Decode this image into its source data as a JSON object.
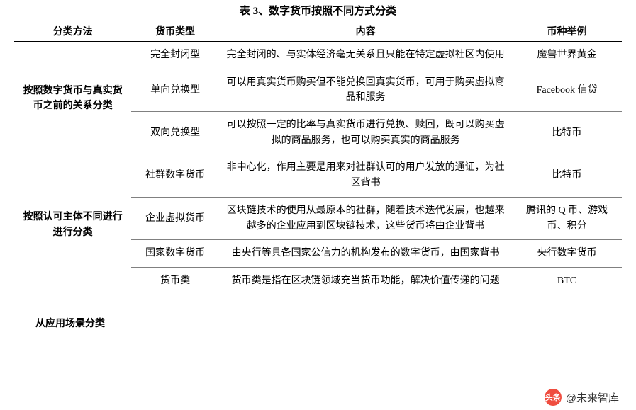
{
  "title": "表 3、数字货币按照不同方式分类",
  "columns": [
    "分类方法",
    "货币类型",
    "内容",
    "币种举例"
  ],
  "sections": [
    {
      "method": "按照数字货币与真实货币之前的关系分类",
      "rows": [
        {
          "type": "完全封闭型",
          "desc": "完全封闭的、与实体经济毫无关系且只能在特定虚拟社区内使用",
          "example": "魔兽世界黄金"
        },
        {
          "type": "单向兑换型",
          "desc": "可以用真实货币购买但不能兑换回真实货币，可用于购买虚拟商品和服务",
          "example": "Facebook 信贷"
        },
        {
          "type": "双向兑换型",
          "desc": "可以按照一定的比率与真实货币进行兑换、赎回，既可以购买虚拟的商品服务，也可以购买真实的商品服务",
          "example": "比特币"
        }
      ]
    },
    {
      "method": "按照认可主体不同进行进行分类",
      "rows": [
        {
          "type": "社群数字货币",
          "desc": "非中心化，作用主要是用来对社群认可的用户发放的通证，为社区背书",
          "example": "比特币"
        },
        {
          "type": "企业虚拟货币",
          "desc": "区块链技术的使用从最原本的社群，随着技术迭代发展，也越来越多的企业应用到区块链技术，这些货币将由企业背书",
          "example": "腾讯的 Q 币、游戏币、积分"
        },
        {
          "type": "国家数字货币",
          "desc": "由央行等具备国家公信力的机构发布的数字货币，由国家背书",
          "example": "央行数字货币"
        },
        {
          "type": "货币类",
          "desc": "货币类是指在区块链领域充当货币功能，解决价值传递的问题",
          "example": "BTC"
        }
      ]
    }
  ],
  "section3_method": "从应用场景分类",
  "footer": {
    "icon_text": "头条",
    "label": "@未来智库"
  },
  "style": {
    "body_bg": "#ffffff",
    "text_color": "#000000",
    "border_color": "#000000",
    "sub_border_color": "#808080",
    "accent_red": "#ef4d3f",
    "title_fontsize": 15,
    "body_fontsize": 14,
    "footer_fontsize": 15
  }
}
